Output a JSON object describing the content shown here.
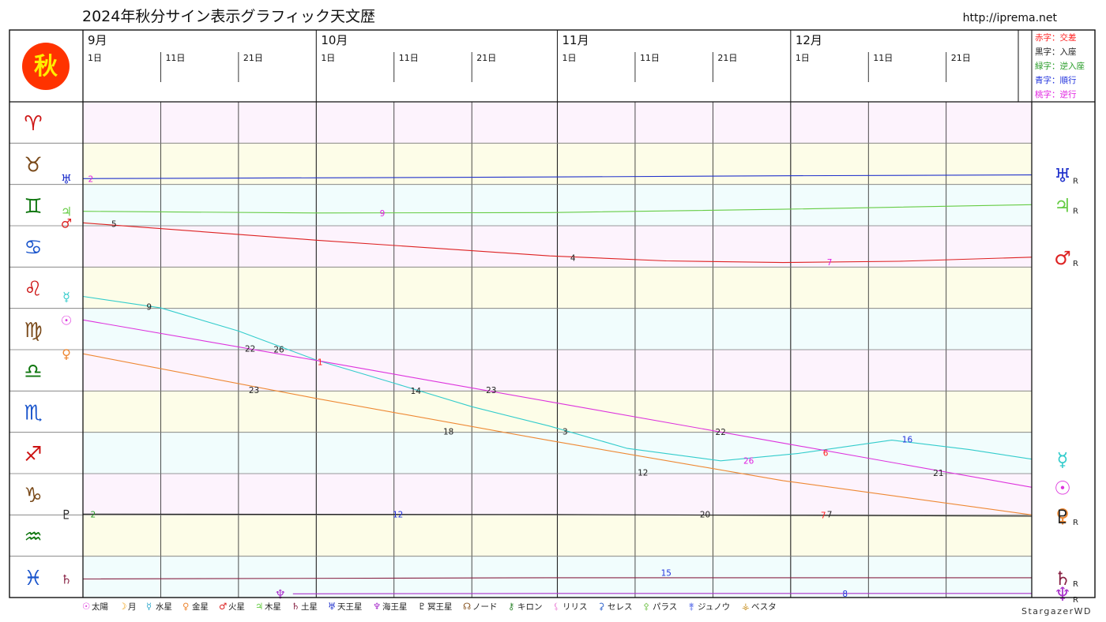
{
  "header": {
    "title": "2024年秋分サイン表示グラフィック天文歴",
    "url": "http://iprema.net",
    "season_glyph": "秋",
    "credit": "StargazerWD"
  },
  "months": [
    {
      "label": "9月",
      "days": [
        "1日",
        "11日",
        "21日"
      ]
    },
    {
      "label": "10月",
      "days": [
        "1日",
        "11日",
        "21日"
      ]
    },
    {
      "label": "11月",
      "days": [
        "1日",
        "11日",
        "21日"
      ]
    },
    {
      "label": "12月",
      "days": [
        "1日",
        "11日",
        "21日"
      ]
    }
  ],
  "color_key": [
    {
      "text": "赤字：交差",
      "color": "#ff2020"
    },
    {
      "text": "黒字：入座",
      "color": "#222222"
    },
    {
      "text": "緑字：逆入座",
      "color": "#2a9d2a"
    },
    {
      "text": "青字：順行",
      "color": "#2233dd"
    },
    {
      "text": "桃字：逆行",
      "color": "#e020e0"
    }
  ],
  "signs": [
    {
      "glyph": "♈",
      "color": "#cc1111"
    },
    {
      "glyph": "♉",
      "color": "#7a4a1a"
    },
    {
      "glyph": "♊",
      "color": "#117711"
    },
    {
      "glyph": "♋",
      "color": "#1a55cc"
    },
    {
      "glyph": "♌",
      "color": "#cc1111"
    },
    {
      "glyph": "♍",
      "color": "#7a4a1a"
    },
    {
      "glyph": "♎",
      "color": "#117711"
    },
    {
      "glyph": "♏",
      "color": "#1a55cc"
    },
    {
      "glyph": "♐",
      "color": "#cc1111"
    },
    {
      "glyph": "♑",
      "color": "#7a4a1a"
    },
    {
      "glyph": "♒",
      "color": "#117711"
    },
    {
      "glyph": "♓",
      "color": "#1a55cc"
    }
  ],
  "row_fills": [
    "#fdf3fd",
    "#fdfde8",
    "#f1fdfd"
  ],
  "chart_data": {
    "type": "line",
    "x_domain_days": [
      0,
      122
    ],
    "y_unit": "sign_index_from_aries",
    "y_domain": [
      0,
      12
    ],
    "series": [
      {
        "name": "天王星",
        "glyph": "♅",
        "color": "#2233cc",
        "start_label": "♅",
        "end_label": "♅",
        "retro": true,
        "points": [
          [
            0,
            1.86
          ],
          [
            30,
            1.84
          ],
          [
            60,
            1.82
          ],
          [
            90,
            1.79
          ],
          [
            122,
            1.77
          ]
        ]
      },
      {
        "name": "木星",
        "glyph": "♃",
        "color": "#66cc44",
        "start_label": "♃",
        "end_label": "♃",
        "retro": true,
        "points": [
          [
            0,
            2.65
          ],
          [
            30,
            2.69
          ],
          [
            60,
            2.68
          ],
          [
            90,
            2.6
          ],
          [
            122,
            2.49
          ]
        ]
      },
      {
        "name": "火星",
        "glyph": "♂",
        "color": "#dd2222",
        "start_label": "♂",
        "end_label": "♂",
        "retro": true,
        "points": [
          [
            0,
            2.93
          ],
          [
            30,
            3.35
          ],
          [
            60,
            3.73
          ],
          [
            75,
            3.85
          ],
          [
            90,
            3.89
          ],
          [
            105,
            3.86
          ],
          [
            122,
            3.76
          ]
        ]
      },
      {
        "name": "水星",
        "glyph": "☿",
        "color": "#33cccc",
        "start_label": "☿",
        "end_label": "☿",
        "points": [
          [
            0,
            4.71
          ],
          [
            10,
            4.99
          ],
          [
            20,
            5.55
          ],
          [
            30,
            6.25
          ],
          [
            40,
            6.81
          ],
          [
            50,
            7.38
          ],
          [
            60,
            7.85
          ],
          [
            70,
            8.39
          ],
          [
            82,
            8.69
          ],
          [
            92,
            8.51
          ],
          [
            104,
            8.19
          ],
          [
            114,
            8.42
          ],
          [
            122,
            8.65
          ]
        ]
      },
      {
        "name": "太陽",
        "glyph": "☉",
        "color": "#dd33dd",
        "start_label": "☉",
        "end_label": "☉",
        "points": [
          [
            0,
            5.28
          ],
          [
            30,
            6.26
          ],
          [
            60,
            7.26
          ],
          [
            90,
            8.26
          ],
          [
            122,
            9.33
          ]
        ]
      },
      {
        "name": "金星",
        "glyph": "♀",
        "color": "#ee8833",
        "start_label": "♀",
        "end_label": "♀",
        "points": [
          [
            0,
            6.1
          ],
          [
            30,
            7.18
          ],
          [
            60,
            8.2
          ],
          [
            90,
            9.17
          ],
          [
            122,
            10.0
          ]
        ]
      },
      {
        "name": "冥王星",
        "glyph": "♇",
        "color": "#222222",
        "start_label": "♇",
        "end_label": "♇",
        "retro": true,
        "points": [
          [
            0,
            9.98
          ],
          [
            60,
            9.99
          ],
          [
            90,
            10.01
          ],
          [
            122,
            10.03
          ]
        ]
      },
      {
        "name": "土星",
        "glyph": "♄",
        "color": "#882244",
        "start_label": "♄",
        "end_label": "♄",
        "retro": true,
        "points": [
          [
            0,
            11.55
          ],
          [
            60,
            11.52
          ],
          [
            90,
            11.52
          ],
          [
            122,
            11.52
          ]
        ]
      },
      {
        "name": "海王星",
        "glyph": "♆",
        "color": "#aa33cc",
        "start_label": "♆",
        "end_label": "♆",
        "retro": true,
        "points": [
          [
            27,
            11.91
          ],
          [
            60,
            11.9
          ],
          [
            90,
            11.9
          ],
          [
            122,
            11.9
          ]
        ]
      }
    ],
    "annotations": [
      {
        "text": "2",
        "x": 1,
        "y": 1.86,
        "color": "#e020e0"
      },
      {
        "text": "9",
        "x": 38.5,
        "y": 2.69,
        "color": "#e020e0"
      },
      {
        "text": "5",
        "x": 4,
        "y": 2.95,
        "color": "#222222"
      },
      {
        "text": "4",
        "x": 63,
        "y": 3.77,
        "color": "#222222"
      },
      {
        "text": "7",
        "x": 96,
        "y": 3.88,
        "color": "#e020e0"
      },
      {
        "text": "9",
        "x": 8.5,
        "y": 4.96,
        "color": "#222222"
      },
      {
        "text": "22",
        "x": 21.5,
        "y": 5.97,
        "color": "#222222"
      },
      {
        "text": "26",
        "x": 25.2,
        "y": 5.99,
        "color": "#222222"
      },
      {
        "text": "1",
        "x": 30.5,
        "y": 6.3,
        "color": "#ff2020"
      },
      {
        "text": "14",
        "x": 42.8,
        "y": 6.99,
        "color": "#222222"
      },
      {
        "text": "23",
        "x": 52.5,
        "y": 6.97,
        "color": "#222222"
      },
      {
        "text": "3",
        "x": 62,
        "y": 7.98,
        "color": "#222222"
      },
      {
        "text": "22",
        "x": 82,
        "y": 7.99,
        "color": "#222222"
      },
      {
        "text": "26",
        "x": 85.6,
        "y": 8.68,
        "color": "#e020e0"
      },
      {
        "text": "6",
        "x": 95.5,
        "y": 8.49,
        "color": "#ff2020"
      },
      {
        "text": "16",
        "x": 106,
        "y": 8.17,
        "color": "#2233dd"
      },
      {
        "text": "21",
        "x": 110,
        "y": 8.98,
        "color": "#222222"
      },
      {
        "text": "23",
        "x": 22,
        "y": 6.97,
        "color": "#222222"
      },
      {
        "text": "18",
        "x": 47,
        "y": 7.98,
        "color": "#222222"
      },
      {
        "text": "12",
        "x": 72,
        "y": 8.97,
        "color": "#222222"
      },
      {
        "text": "7",
        "x": 95.2,
        "y": 10.0,
        "color": "#ff2020"
      },
      {
        "text": "7",
        "x": 96,
        "y": 9.98,
        "color": "#222222"
      },
      {
        "text": "2",
        "x": 1.3,
        "y": 9.98,
        "color": "#2a9d2a"
      },
      {
        "text": "12",
        "x": 40.5,
        "y": 9.98,
        "color": "#2233dd"
      },
      {
        "text": "20",
        "x": 80,
        "y": 9.98,
        "color": "#222222"
      },
      {
        "text": "15",
        "x": 75,
        "y": 11.4,
        "color": "#2233dd"
      },
      {
        "text": "8",
        "x": 98,
        "y": 11.9,
        "color": "#2233dd"
      }
    ]
  },
  "legend": [
    {
      "glyph": "☉",
      "text": "太陽",
      "color": "#dd33dd"
    },
    {
      "glyph": "☽",
      "text": "月",
      "color": "#ee9900"
    },
    {
      "glyph": "☿",
      "text": "水星",
      "color": "#33aacc"
    },
    {
      "glyph": "♀",
      "text": "金星",
      "color": "#ee8833"
    },
    {
      "glyph": "♂",
      "text": "火星",
      "color": "#dd2222"
    },
    {
      "glyph": "♃",
      "text": "木星",
      "color": "#66cc44"
    },
    {
      "glyph": "♄",
      "text": "土星",
      "color": "#882244"
    },
    {
      "glyph": "♅",
      "text": "天王星",
      "color": "#2233cc"
    },
    {
      "glyph": "♆",
      "text": "海王星",
      "color": "#aa33cc"
    },
    {
      "glyph": "♇",
      "text": "冥王星",
      "color": "#222222"
    },
    {
      "glyph": "☊",
      "text": "ノード",
      "color": "#885522"
    },
    {
      "glyph": "⚷",
      "text": "キロン",
      "color": "#338833"
    },
    {
      "glyph": "⚸",
      "text": "リリス",
      "color": "#ee99dd"
    },
    {
      "glyph": "⚳",
      "text": "セレス",
      "color": "#3366cc"
    },
    {
      "glyph": "⚴",
      "text": "パラス",
      "color": "#88cc66"
    },
    {
      "glyph": "⚵",
      "text": "ジュノウ",
      "color": "#7788ee"
    },
    {
      "glyph": "⚶",
      "text": "ベスタ",
      "color": "#cc9933"
    }
  ]
}
